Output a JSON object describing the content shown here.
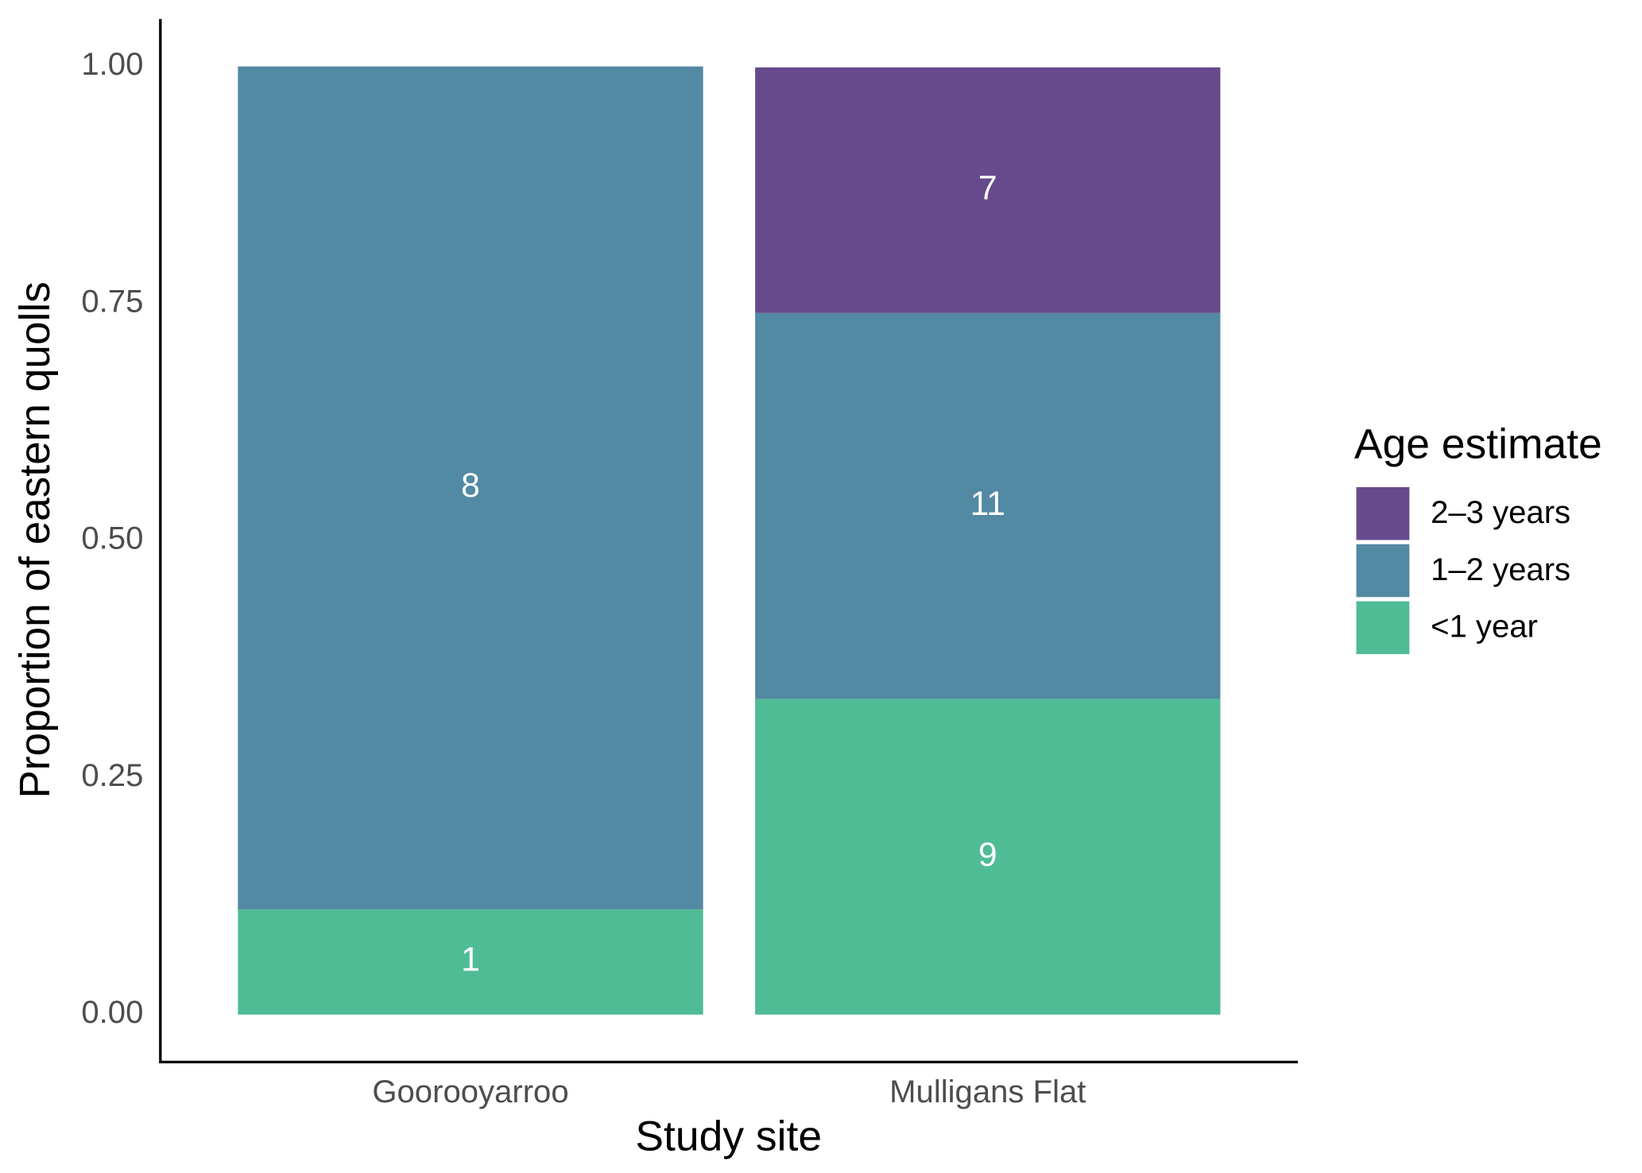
{
  "chart_data": {
    "type": "stacked_bar",
    "x_label": "Study site",
    "y_label": "Proportion of eastern quolls",
    "legend_title": "Age estimate",
    "legend_position": "right",
    "categories": [
      "Gooroo­yarroo",
      "Mulligans Flat"
    ],
    "series": [
      {
        "name": "<1 year",
        "color": "#4fbc95",
        "values": [
          0.111,
          0.333
        ],
        "counts": [
          "1",
          "9"
        ]
      },
      {
        "name": "1–2 years",
        "color": "#5289a3",
        "values": [
          0.889,
          0.407
        ],
        "counts": [
          "8",
          "11"
        ]
      },
      {
        "name": "2–3 years",
        "color": "#674a8c",
        "values": [
          null,
          0.259
        ],
        "counts": [
          null,
          "7"
        ]
      }
    ],
    "ylim": [
      -0.05,
      1.05
    ],
    "yticks": [
      {
        "value": 0,
        "label": "0.00"
      },
      {
        "value": 0.25,
        "label": "0.25"
      },
      {
        "value": 0.5,
        "label": "0.50"
      },
      {
        "value": 0.75,
        "label": "0.75"
      },
      {
        "value": 1,
        "label": "1.00"
      }
    ],
    "grid": false
  }
}
